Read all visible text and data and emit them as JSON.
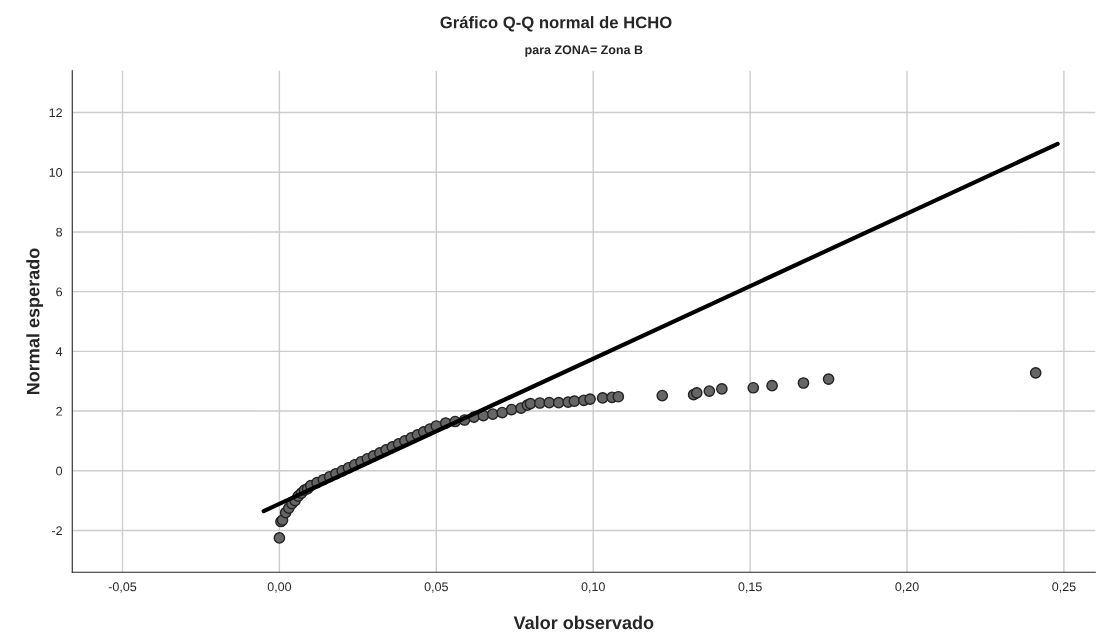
{
  "chart_data": {
    "type": "scatter",
    "title": "Gráfico Q-Q normal de HCHO",
    "subtitle": "para ZONA= Zona B",
    "xlabel": "Valor observado",
    "ylabel": "Normal esperado",
    "xlim": [
      -0.066,
      0.26
    ],
    "ylim": [
      -3.4,
      13.4
    ],
    "xticks": [
      {
        "value": -0.05,
        "label": "-0,05"
      },
      {
        "value": 0,
        "label": "0,00"
      },
      {
        "value": 0.05,
        "label": "0,05"
      },
      {
        "value": 0.1,
        "label": "0,10"
      },
      {
        "value": 0.15,
        "label": "0,15"
      },
      {
        "value": 0.2,
        "label": "0,20"
      },
      {
        "value": 0.25,
        "label": "0,25"
      }
    ],
    "yticks": [
      -2,
      0,
      2,
      4,
      6,
      8,
      10,
      12
    ],
    "grid": true,
    "series": [
      {
        "marker": "circle",
        "color": "#666666",
        "x": [
          0.0,
          0.0005,
          0.001,
          0.002,
          0.003,
          0.004,
          0.005,
          0.006,
          0.007,
          0.008,
          0.009,
          0.01,
          0.012,
          0.014,
          0.016,
          0.018,
          0.02,
          0.022,
          0.024,
          0.026,
          0.028,
          0.03,
          0.032,
          0.034,
          0.036,
          0.038,
          0.04,
          0.042,
          0.044,
          0.046,
          0.048,
          0.05,
          0.053,
          0.056,
          0.059,
          0.062,
          0.065,
          0.068,
          0.071,
          0.074,
          0.077,
          0.079,
          0.08,
          0.083,
          0.086,
          0.089,
          0.092,
          0.094,
          0.097,
          0.099,
          0.103,
          0.106,
          0.108,
          0.122,
          0.132,
          0.133,
          0.137,
          0.141,
          0.151,
          0.157,
          0.167,
          0.175,
          0.241
        ],
        "values": [
          -2.25,
          -1.7,
          -1.65,
          -1.4,
          -1.25,
          -1.1,
          -1.0,
          -0.85,
          -0.75,
          -0.65,
          -0.6,
          -0.5,
          -0.4,
          -0.3,
          -0.2,
          -0.1,
          0.0,
          0.1,
          0.2,
          0.3,
          0.4,
          0.5,
          0.6,
          0.7,
          0.8,
          0.9,
          1.0,
          1.1,
          1.2,
          1.3,
          1.4,
          1.5,
          1.6,
          1.65,
          1.7,
          1.8,
          1.85,
          1.9,
          1.95,
          2.05,
          2.1,
          2.2,
          2.25,
          2.27,
          2.28,
          2.28,
          2.3,
          2.33,
          2.36,
          2.4,
          2.44,
          2.46,
          2.48,
          2.52,
          2.55,
          2.61,
          2.67,
          2.74,
          2.78,
          2.85,
          2.94,
          3.07,
          3.28
        ]
      },
      {
        "type": "line",
        "marker": "none",
        "color": "#000000",
        "x": [
          -0.005,
          0.248
        ],
        "values": [
          -1.35,
          10.95
        ]
      }
    ]
  }
}
